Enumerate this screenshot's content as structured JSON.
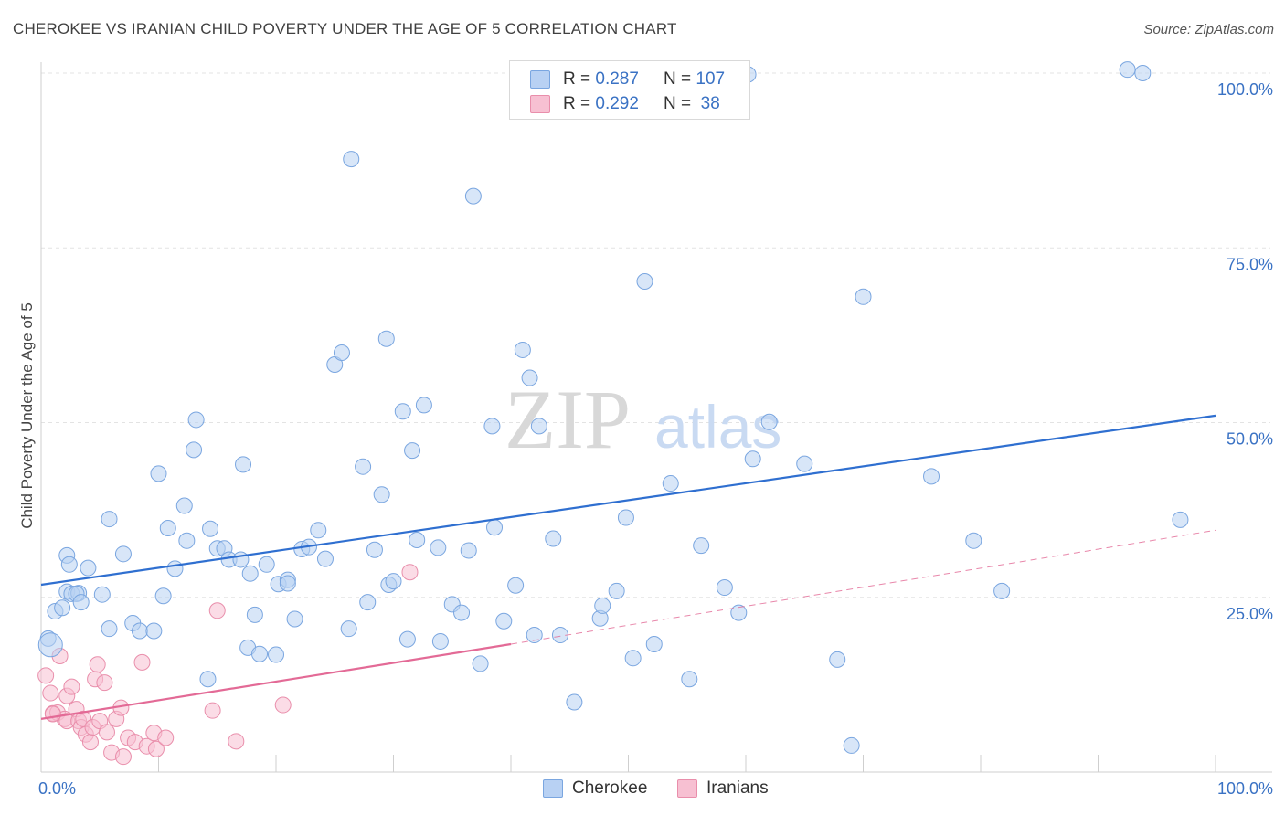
{
  "title": "CHEROKEE VS IRANIAN CHILD POVERTY UNDER THE AGE OF 5 CORRELATION CHART",
  "source": "Source: ZipAtlas.com",
  "watermark": {
    "zip": "ZIP",
    "atlas": "atlas"
  },
  "legend": {
    "rows": [
      {
        "r_label": "R = ",
        "r_value": "0.287",
        "n_label": "N = ",
        "n_value": "107"
      },
      {
        "r_label": "R = ",
        "r_value": "0.292",
        "n_label": "N = ",
        "n_value": " 38"
      }
    ]
  },
  "colors": {
    "cherokee_fill": "#b8d1f3",
    "cherokee_stroke": "#7aa6e0",
    "cherokee_line": "#2f6fd0",
    "iranian_fill": "#f7c0d2",
    "iranian_stroke": "#e98eab",
    "iranian_line": "#e36a96",
    "tick_label": "#3a72c4",
    "grid": "#e3e3e3"
  },
  "chart_data": {
    "type": "scatter",
    "title": "CHEROKEE VS IRANIAN CHILD POVERTY UNDER THE AGE OF 5 CORRELATION CHART",
    "xlabel": "",
    "ylabel": "Child Poverty Under the Age of 5",
    "xlim": [
      0,
      100
    ],
    "ylim": [
      0,
      100
    ],
    "x_tick_labels": [
      "0.0%",
      "100.0%"
    ],
    "y_ticks": [
      25,
      50,
      75,
      100
    ],
    "y_tick_labels": [
      "25.0%",
      "50.0%",
      "75.0%",
      "100.0%"
    ],
    "grid": true,
    "legend_position": "bottom",
    "series": [
      {
        "name": "Cherokee",
        "r": 0.287,
        "n": 107,
        "trend": {
          "x": [
            0,
            100
          ],
          "y": [
            26.8,
            51.0
          ],
          "dashed_from": null
        },
        "points": [
          [
            0.6,
            19.1
          ],
          [
            0.8,
            18.2
          ],
          [
            1.2,
            23.0
          ],
          [
            1.8,
            23.5
          ],
          [
            2.2,
            25.8
          ],
          [
            2.6,
            25.5
          ],
          [
            2.2,
            31.0
          ],
          [
            2.4,
            29.7
          ],
          [
            3.2,
            25.6
          ],
          [
            3.0,
            25.5
          ],
          [
            3.4,
            24.3
          ],
          [
            4.0,
            29.2
          ],
          [
            5.2,
            25.4
          ],
          [
            5.8,
            36.2
          ],
          [
            5.8,
            20.5
          ],
          [
            7.0,
            31.2
          ],
          [
            7.8,
            21.3
          ],
          [
            8.4,
            20.2
          ],
          [
            9.6,
            20.2
          ],
          [
            10.0,
            42.7
          ],
          [
            10.4,
            25.2
          ],
          [
            10.8,
            34.9
          ],
          [
            11.4,
            29.1
          ],
          [
            12.2,
            38.1
          ],
          [
            12.4,
            33.1
          ],
          [
            13.0,
            46.1
          ],
          [
            13.2,
            50.4
          ],
          [
            14.2,
            13.3
          ],
          [
            14.4,
            34.8
          ],
          [
            15.0,
            32.0
          ],
          [
            15.6,
            32.0
          ],
          [
            16.0,
            30.4
          ],
          [
            17.0,
            30.4
          ],
          [
            17.2,
            44.0
          ],
          [
            17.8,
            28.4
          ],
          [
            18.2,
            22.5
          ],
          [
            17.6,
            17.8
          ],
          [
            18.6,
            16.9
          ],
          [
            19.2,
            29.7
          ],
          [
            20.0,
            16.8
          ],
          [
            20.2,
            26.9
          ],
          [
            21.0,
            27.5
          ],
          [
            21.0,
            27.0
          ],
          [
            21.6,
            21.9
          ],
          [
            22.2,
            31.9
          ],
          [
            22.8,
            32.2
          ],
          [
            23.6,
            34.6
          ],
          [
            24.2,
            30.5
          ],
          [
            25.0,
            58.3
          ],
          [
            25.6,
            60.0
          ],
          [
            26.2,
            20.5
          ],
          [
            26.4,
            87.7
          ],
          [
            27.4,
            43.7
          ],
          [
            27.8,
            24.3
          ],
          [
            28.4,
            31.8
          ],
          [
            29.0,
            39.7
          ],
          [
            29.4,
            62.0
          ],
          [
            29.6,
            26.8
          ],
          [
            30.0,
            27.3
          ],
          [
            30.8,
            51.6
          ],
          [
            31.6,
            46.0
          ],
          [
            31.2,
            19.0
          ],
          [
            32.0,
            33.2
          ],
          [
            32.6,
            52.5
          ],
          [
            33.8,
            32.1
          ],
          [
            34.0,
            18.7
          ],
          [
            35.0,
            24.0
          ],
          [
            35.8,
            22.8
          ],
          [
            36.4,
            31.7
          ],
          [
            36.8,
            82.4
          ],
          [
            37.4,
            15.5
          ],
          [
            38.4,
            49.5
          ],
          [
            38.6,
            35.0
          ],
          [
            39.4,
            21.6
          ],
          [
            40.4,
            26.7
          ],
          [
            41.0,
            60.4
          ],
          [
            41.6,
            56.4
          ],
          [
            42.0,
            19.6
          ],
          [
            42.4,
            49.5
          ],
          [
            43.6,
            33.4
          ],
          [
            44.2,
            19.6
          ],
          [
            45.4,
            10.0
          ],
          [
            47.6,
            22.0
          ],
          [
            47.8,
            23.8
          ],
          [
            49.0,
            25.9
          ],
          [
            49.8,
            36.4
          ],
          [
            50.4,
            16.3
          ],
          [
            51.4,
            70.2
          ],
          [
            52.2,
            18.3
          ],
          [
            53.6,
            41.3
          ],
          [
            55.2,
            13.3
          ],
          [
            56.2,
            32.4
          ],
          [
            58.2,
            26.4
          ],
          [
            59.4,
            22.8
          ],
          [
            60.2,
            99.8
          ],
          [
            60.6,
            44.8
          ],
          [
            62.0,
            50.1
          ],
          [
            65.0,
            44.1
          ],
          [
            67.8,
            16.1
          ],
          [
            69.0,
            3.8
          ],
          [
            70.0,
            68.0
          ],
          [
            75.8,
            42.3
          ],
          [
            79.4,
            33.1
          ],
          [
            81.8,
            25.9
          ],
          [
            93.8,
            100.0
          ],
          [
            97.0,
            36.1
          ],
          [
            92.5,
            100.5
          ]
        ]
      },
      {
        "name": "Iranians",
        "r": 0.292,
        "n": 38,
        "trend": {
          "x": [
            0,
            40
          ],
          "y": [
            7.6,
            18.3
          ],
          "dashed_to": [
            100,
            34.6
          ]
        },
        "points": [
          [
            0.4,
            13.8
          ],
          [
            0.8,
            11.3
          ],
          [
            1.0,
            8.4
          ],
          [
            1.4,
            8.5
          ],
          [
            1.6,
            16.6
          ],
          [
            2.0,
            7.6
          ],
          [
            2.2,
            7.3
          ],
          [
            2.2,
            10.9
          ],
          [
            2.6,
            12.2
          ],
          [
            3.0,
            9.0
          ],
          [
            3.2,
            7.3
          ],
          [
            3.4,
            6.4
          ],
          [
            3.6,
            7.6
          ],
          [
            3.8,
            5.4
          ],
          [
            4.2,
            4.3
          ],
          [
            4.4,
            6.4
          ],
          [
            4.6,
            13.3
          ],
          [
            4.8,
            15.4
          ],
          [
            5.0,
            7.3
          ],
          [
            5.4,
            12.8
          ],
          [
            5.6,
            5.7
          ],
          [
            6.0,
            2.8
          ],
          [
            6.4,
            7.6
          ],
          [
            6.8,
            9.2
          ],
          [
            7.0,
            2.2
          ],
          [
            7.4,
            4.9
          ],
          [
            8.0,
            4.3
          ],
          [
            8.6,
            15.7
          ],
          [
            9.0,
            3.7
          ],
          [
            9.6,
            5.6
          ],
          [
            9.8,
            3.3
          ],
          [
            10.6,
            4.9
          ],
          [
            14.6,
            8.8
          ],
          [
            15.0,
            23.1
          ],
          [
            16.6,
            4.4
          ],
          [
            20.6,
            9.6
          ],
          [
            31.4,
            28.6
          ],
          [
            1.0,
            8.3
          ]
        ]
      }
    ]
  },
  "bottom_legend": {
    "items": [
      "Cherokee",
      "Iranians"
    ]
  }
}
